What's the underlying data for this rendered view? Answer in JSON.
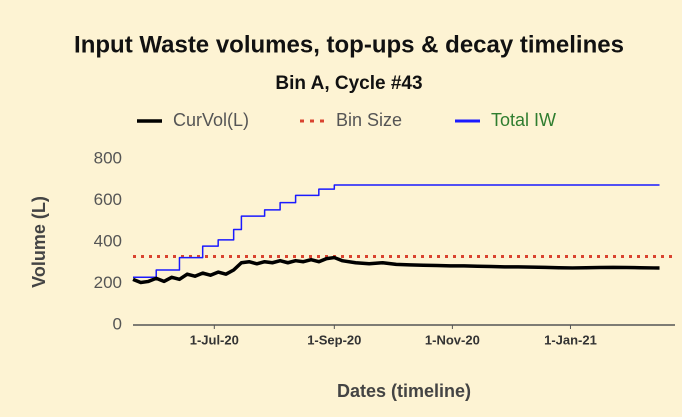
{
  "chart_data": {
    "type": "line",
    "title": "Input Waste volumes, top-ups & decay timelines",
    "subtitle": "Bin A, Cycle #43",
    "x_label": "Dates (timeline)",
    "y_label": "Volume (L)",
    "x": [
      "2020-05-20",
      "2020-05-24",
      "2020-05-28",
      "2020-06-01",
      "2020-06-05",
      "2020-06-09",
      "2020-06-13",
      "2020-06-17",
      "2020-06-21",
      "2020-06-25",
      "2020-06-29",
      "2020-07-03",
      "2020-07-07",
      "2020-07-11",
      "2020-07-15",
      "2020-07-19",
      "2020-07-23",
      "2020-07-27",
      "2020-07-31",
      "2020-08-04",
      "2020-08-08",
      "2020-08-12",
      "2020-08-16",
      "2020-08-20",
      "2020-08-24",
      "2020-08-28",
      "2020-09-01",
      "2020-09-05",
      "2020-09-12",
      "2020-09-19",
      "2020-09-26",
      "2020-10-03",
      "2020-10-10",
      "2020-10-17",
      "2020-10-24",
      "2020-10-31",
      "2020-11-07",
      "2020-11-14",
      "2020-11-21",
      "2020-11-28",
      "2020-12-05",
      "2020-12-12",
      "2020-12-19",
      "2020-12-26",
      "2021-01-02",
      "2021-01-09",
      "2021-01-16",
      "2021-01-23",
      "2021-01-30",
      "2021-02-06",
      "2021-02-13",
      "2021-02-16"
    ],
    "series": [
      {
        "name": "CurVol(L)",
        "color": "#000000",
        "width": 3.5,
        "dash": "solid",
        "step": false,
        "values": [
          220,
          205,
          210,
          225,
          210,
          230,
          220,
          245,
          235,
          250,
          240,
          255,
          245,
          265,
          300,
          305,
          295,
          305,
          300,
          310,
          300,
          310,
          305,
          315,
          305,
          320,
          325,
          310,
          300,
          295,
          300,
          292,
          290,
          288,
          287,
          285,
          285,
          283,
          282,
          280,
          280,
          279,
          278,
          276,
          275,
          276,
          277,
          278,
          277,
          276,
          275,
          275
        ]
      },
      {
        "name": "Bin Size",
        "color": "#d9432f",
        "width": 3,
        "dash": "dotted",
        "step": false,
        "x": [
          "2020-05-20",
          "2021-02-24"
        ],
        "values": [
          330,
          330
        ]
      },
      {
        "name": "Total IW",
        "color": "#1a1aff",
        "width": 1.5,
        "dash": "solid",
        "step": true,
        "values": [
          230,
          230,
          230,
          265,
          265,
          265,
          325,
          325,
          325,
          380,
          380,
          410,
          410,
          460,
          525,
          525,
          525,
          555,
          555,
          590,
          590,
          625,
          625,
          625,
          655,
          655,
          675,
          675,
          675,
          675,
          675,
          675,
          675,
          675,
          675,
          675,
          675,
          675,
          675,
          675,
          675,
          675,
          675,
          675,
          675,
          675,
          675,
          675,
          675,
          675,
          675,
          675
        ]
      }
    ],
    "xlim": [
      "2020-05-20",
      "2021-02-24"
    ],
    "xticks": [
      {
        "value": "2020-07-01",
        "label": "1-Jul-20"
      },
      {
        "value": "2020-09-01",
        "label": "1-Sep-20"
      },
      {
        "value": "2020-11-01",
        "label": "1-Nov-20"
      },
      {
        "value": "2021-01-01",
        "label": "1-Jan-21"
      }
    ],
    "ylim": [
      0,
      800
    ],
    "yticks": [
      0,
      200,
      400,
      600,
      800
    ],
    "grid": false,
    "legend": "top"
  }
}
